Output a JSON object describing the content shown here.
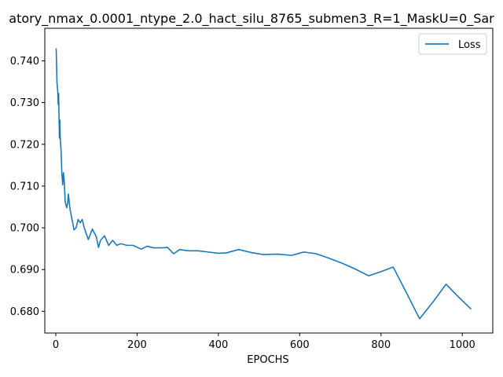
{
  "chart_data": {
    "type": "line",
    "title": "atory_nmax_0.0001_ntype_2.0_hact_silu_8765_submen3_R=1_MaskU=0_Sar",
    "xlabel": "EPOCHS",
    "ylabel": "",
    "xlim": [
      -27,
      1075
    ],
    "ylim": [
      0.6748,
      0.7478
    ],
    "xticks": [
      0,
      200,
      400,
      600,
      800,
      1000
    ],
    "yticks": [
      0.68,
      0.69,
      0.7,
      0.71,
      0.72,
      0.73,
      0.74
    ],
    "ytick_labels": [
      "0.680",
      "0.690",
      "0.700",
      "0.710",
      "0.720",
      "0.730",
      "0.740"
    ],
    "legend_position": "top-right",
    "grid": false,
    "series": [
      {
        "name": "Loss",
        "color": "#1f77b4",
        "x": [
          1,
          3,
          5,
          6,
          7,
          9,
          10,
          11,
          13,
          15,
          17,
          19,
          21,
          23,
          25,
          27,
          29,
          31,
          35,
          40,
          45,
          50,
          55,
          60,
          65,
          70,
          80,
          90,
          100,
          105,
          110,
          120,
          130,
          140,
          150,
          160,
          175,
          190,
          210,
          225,
          240,
          260,
          275,
          290,
          305,
          325,
          350,
          375,
          400,
          420,
          450,
          480,
          510,
          545,
          580,
          610,
          640,
          670,
          705,
          735,
          770,
          800,
          830,
          865,
          895,
          930,
          960,
          990,
          1022
        ],
        "y": [
          0.743,
          0.7348,
          0.7325,
          0.7295,
          0.7322,
          0.7215,
          0.7258,
          0.7215,
          0.7185,
          0.713,
          0.7103,
          0.7132,
          0.711,
          0.7063,
          0.7055,
          0.7048,
          0.7058,
          0.7081,
          0.7045,
          0.702,
          0.6995,
          0.7,
          0.702,
          0.7012,
          0.702,
          0.7,
          0.6972,
          0.6997,
          0.6978,
          0.6953,
          0.697,
          0.6981,
          0.6958,
          0.697,
          0.6958,
          0.6962,
          0.6958,
          0.6958,
          0.6949,
          0.6956,
          0.6952,
          0.6952,
          0.6953,
          0.6938,
          0.6948,
          0.6945,
          0.6945,
          0.6942,
          0.6939,
          0.694,
          0.6948,
          0.6941,
          0.6936,
          0.6937,
          0.6934,
          0.6942,
          0.6938,
          0.6928,
          0.6915,
          0.6902,
          0.6885,
          0.6895,
          0.6906,
          0.684,
          0.6782,
          0.6825,
          0.6865,
          0.6835,
          0.6805
        ]
      }
    ]
  }
}
